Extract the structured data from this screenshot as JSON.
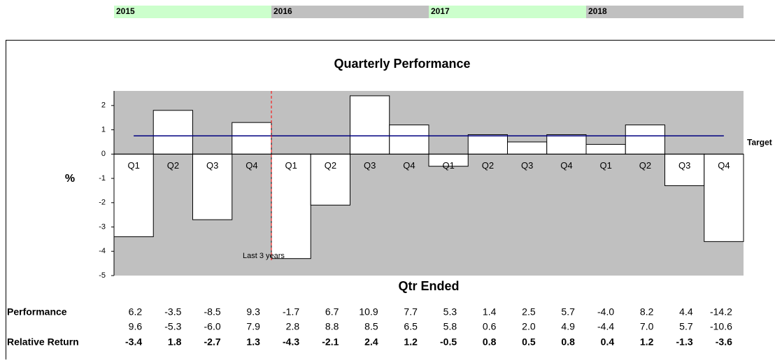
{
  "chart_data": {
    "type": "bar",
    "title": "Quarterly Performance",
    "years": [
      "2015",
      "2016",
      "2017",
      "2018"
    ],
    "year_colors": [
      "#ccffcc",
      "#c0c0c0",
      "#ccffcc",
      "#c0c0c0"
    ],
    "categories": [
      "Q1",
      "Q2",
      "Q3",
      "Q4",
      "Q1",
      "Q2",
      "Q3",
      "Q4",
      "Q1",
      "Q2",
      "Q3",
      "Q4",
      "Q1",
      "Q2",
      "Q3",
      "Q4"
    ],
    "values": [
      -3.4,
      1.8,
      -2.7,
      1.3,
      -4.3,
      -2.1,
      2.4,
      1.2,
      -0.5,
      0.8,
      0.5,
      0.8,
      0.4,
      1.2,
      -1.3,
      -3.6
    ],
    "color": "#ffffff",
    "plot_background": "#c0c0c0",
    "ylim": [
      -5,
      2.6
    ],
    "yticks": [
      -5,
      -4,
      -3,
      -2,
      -1,
      0,
      1,
      2
    ],
    "y_label": "%",
    "x_label": "Qtr Ended",
    "target": {
      "name": "Target",
      "value": 0.75,
      "color": "#000080"
    },
    "marker": {
      "label": "Last 3 years",
      "after_index": 3,
      "color": "#ff0000"
    },
    "table_rows": [
      {
        "label": "Performance",
        "values": [
          "6.2",
          "-3.5",
          "-8.5",
          "9.3",
          "-1.7",
          "6.7",
          "10.9",
          "7.7",
          "5.3",
          "1.4",
          "2.5",
          "5.7",
          "-4.0",
          "8.2",
          "4.4",
          "-14.2"
        ]
      },
      {
        "values": [
          "9.6",
          "-5.3",
          "-6.0",
          "7.9",
          "2.8",
          "8.8",
          "8.5",
          "6.5",
          "5.8",
          "0.6",
          "2.0",
          "4.9",
          "-4.4",
          "7.0",
          "5.7",
          "-10.6"
        ]
      }
    ],
    "values_row_label": "Relative Return"
  }
}
